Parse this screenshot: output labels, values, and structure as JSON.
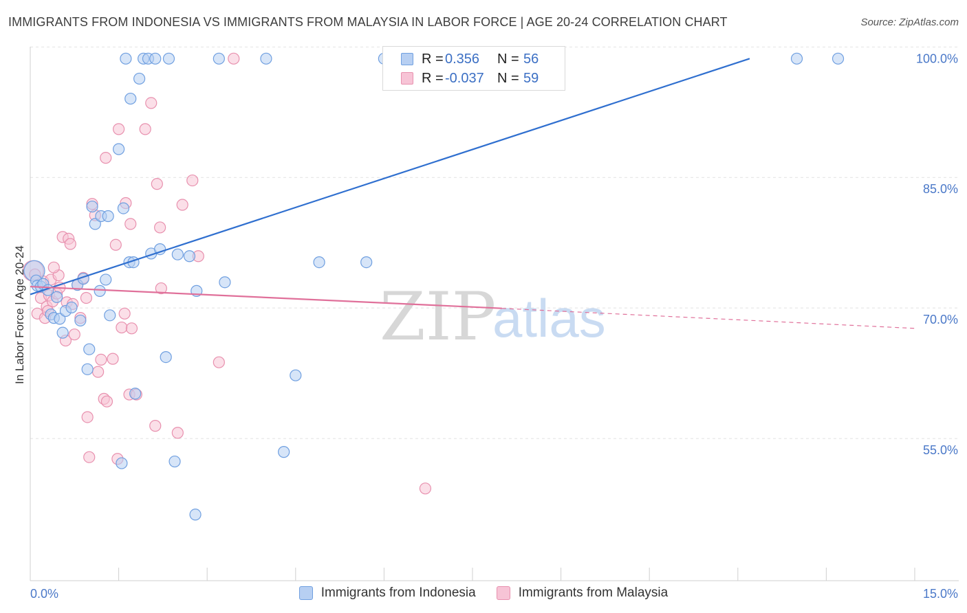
{
  "title": "IMMIGRANTS FROM INDONESIA VS IMMIGRANTS FROM MALAYSIA IN LABOR FORCE | AGE 20-24 CORRELATION CHART",
  "source": "Source: ZipAtlas.com",
  "watermark": {
    "zip": "ZIP",
    "atlas": "atlas"
  },
  "legend_stats": [
    {
      "r_label": "R =",
      "r_value": "0.356",
      "n_label": "N =",
      "n_value": "56"
    },
    {
      "r_label": "R =",
      "r_value": "-0.037",
      "n_label": "N =",
      "n_value": "59"
    }
  ],
  "chart_data": {
    "type": "scatter",
    "title": "IMMIGRANTS FROM INDONESIA VS IMMIGRANTS FROM MALAYSIA IN LABOR FORCE | AGE 20-24 CORRELATION CHART",
    "xlabel": "",
    "ylabel": "In Labor Force | Age 20-24",
    "xlim": [
      0,
      15
    ],
    "ylim": [
      40,
      102
    ],
    "x_tick_labels": [
      "0.0%",
      "15.0%"
    ],
    "y_tick_values": [
      55,
      70,
      85,
      100
    ],
    "y_tick_labels": [
      "55.0%",
      "70.0%",
      "85.0%",
      "100.0%"
    ],
    "legend_position": "top-center",
    "series": [
      {
        "name": "Immigrants from Indonesia",
        "color": "#6f9fe0",
        "fill": "#b7cff2",
        "R": 0.356,
        "N": 56,
        "trend": {
          "x": [
            0.0,
            12.2
          ],
          "y": [
            72.9,
            100.0
          ],
          "dashed_to": null
        },
        "points": [
          [
            0.07,
            75.6
          ],
          [
            0.1,
            74.5
          ],
          [
            0.12,
            73.9
          ],
          [
            0.18,
            73.8
          ],
          [
            0.22,
            74.1
          ],
          [
            0.3,
            73.4
          ],
          [
            0.35,
            70.6
          ],
          [
            0.4,
            70.2
          ],
          [
            0.45,
            72.6
          ],
          [
            0.5,
            70.1
          ],
          [
            0.55,
            68.5
          ],
          [
            0.6,
            71.0
          ],
          [
            0.7,
            71.4
          ],
          [
            0.8,
            74.0
          ],
          [
            0.85,
            69.9
          ],
          [
            0.9,
            74.7
          ],
          [
            0.97,
            64.3
          ],
          [
            1.0,
            66.6
          ],
          [
            1.05,
            83.0
          ],
          [
            1.1,
            81.0
          ],
          [
            1.18,
            73.3
          ],
          [
            1.2,
            81.9
          ],
          [
            1.28,
            74.6
          ],
          [
            1.32,
            81.9
          ],
          [
            1.35,
            70.5
          ],
          [
            1.5,
            89.6
          ],
          [
            1.55,
            53.5
          ],
          [
            1.58,
            82.8
          ],
          [
            1.62,
            100.0
          ],
          [
            1.68,
            76.6
          ],
          [
            1.7,
            95.4
          ],
          [
            1.75,
            76.6
          ],
          [
            1.78,
            61.5
          ],
          [
            1.85,
            97.7
          ],
          [
            1.92,
            100.0
          ],
          [
            2.0,
            100.0
          ],
          [
            2.05,
            77.6
          ],
          [
            2.12,
            100.0
          ],
          [
            2.2,
            78.1
          ],
          [
            2.3,
            65.7
          ],
          [
            2.35,
            100.0
          ],
          [
            2.45,
            53.7
          ],
          [
            2.5,
            77.5
          ],
          [
            2.7,
            77.3
          ],
          [
            2.8,
            47.6
          ],
          [
            2.82,
            73.3
          ],
          [
            3.2,
            100.0
          ],
          [
            3.3,
            74.3
          ],
          [
            4.0,
            100.0
          ],
          [
            4.3,
            54.8
          ],
          [
            4.5,
            63.6
          ],
          [
            4.9,
            76.6
          ],
          [
            5.7,
            76.6
          ],
          [
            6.0,
            100.0
          ],
          [
            13.0,
            100.0
          ],
          [
            13.7,
            100.0
          ]
        ]
      },
      {
        "name": "Immigrants from Malaysia",
        "color": "#e890ae",
        "fill": "#f7c4d6",
        "R": -0.037,
        "N": 59,
        "trend": {
          "x": [
            0.0,
            8.0
          ],
          "y": [
            73.8,
            71.3
          ],
          "dashed_to": [
            15.0,
            69.0
          ]
        },
        "points": [
          [
            0.05,
            75.6
          ],
          [
            0.08,
            75.2
          ],
          [
            0.12,
            70.7
          ],
          [
            0.18,
            72.5
          ],
          [
            0.22,
            74.4
          ],
          [
            0.25,
            70.2
          ],
          [
            0.28,
            71.5
          ],
          [
            0.32,
            72.8
          ],
          [
            0.35,
            74.6
          ],
          [
            0.38,
            72.1
          ],
          [
            0.45,
            73.0
          ],
          [
            0.48,
            75.1
          ],
          [
            0.5,
            73.7
          ],
          [
            0.55,
            79.5
          ],
          [
            0.6,
            67.6
          ],
          [
            0.62,
            72.0
          ],
          [
            0.65,
            79.3
          ],
          [
            0.68,
            78.7
          ],
          [
            0.72,
            71.8
          ],
          [
            0.75,
            68.3
          ],
          [
            0.8,
            74.0
          ],
          [
            0.85,
            70.2
          ],
          [
            0.9,
            74.8
          ],
          [
            0.95,
            72.5
          ],
          [
            0.97,
            58.8
          ],
          [
            1.0,
            54.2
          ],
          [
            1.05,
            83.3
          ],
          [
            1.1,
            82.0
          ],
          [
            1.15,
            64.0
          ],
          [
            1.2,
            65.4
          ],
          [
            1.25,
            60.9
          ],
          [
            1.28,
            88.6
          ],
          [
            1.3,
            60.6
          ],
          [
            1.4,
            65.5
          ],
          [
            1.45,
            78.6
          ],
          [
            1.48,
            54.0
          ],
          [
            1.5,
            91.9
          ],
          [
            1.55,
            69.1
          ],
          [
            1.6,
            70.7
          ],
          [
            1.62,
            83.4
          ],
          [
            1.68,
            61.4
          ],
          [
            1.7,
            81.0
          ],
          [
            1.72,
            69.0
          ],
          [
            1.8,
            61.4
          ],
          [
            1.95,
            91.9
          ],
          [
            2.05,
            94.9
          ],
          [
            2.12,
            57.8
          ],
          [
            2.15,
            85.6
          ],
          [
            2.2,
            80.6
          ],
          [
            2.22,
            73.6
          ],
          [
            2.5,
            57.0
          ],
          [
            2.58,
            83.2
          ],
          [
            2.75,
            86.0
          ],
          [
            2.85,
            77.3
          ],
          [
            3.2,
            65.1
          ],
          [
            3.45,
            100.0
          ],
          [
            6.7,
            50.6
          ],
          [
            0.4,
            76.0
          ],
          [
            0.3,
            71.0
          ]
        ]
      }
    ]
  }
}
